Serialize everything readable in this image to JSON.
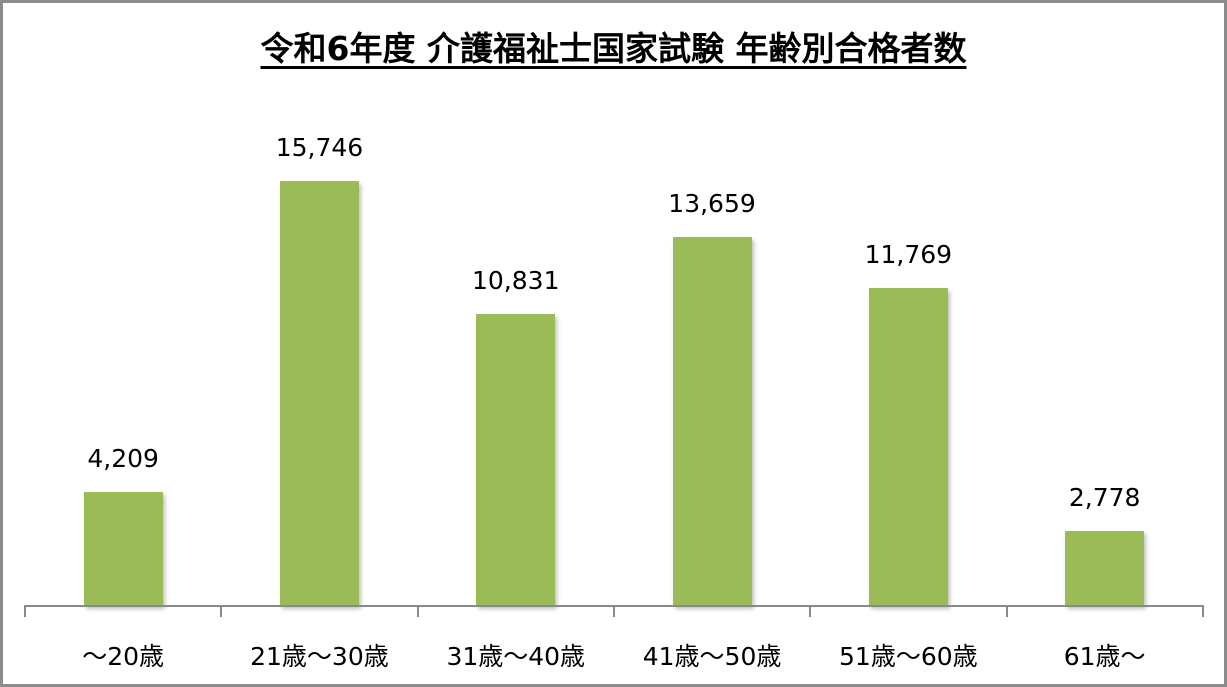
{
  "chart_data": {
    "type": "bar",
    "title": "令和6年度 介護福祉士国家試験 年齢別合格者数",
    "xlabel": "",
    "ylabel": "",
    "categories": [
      "～20歳",
      "21歳～30歳",
      "31歳～40歳",
      "41歳～50歳",
      "51歳～60歳",
      "61歳～"
    ],
    "values": [
      4209,
      15746,
      10831,
      13659,
      11769,
      2778
    ],
    "value_labels": [
      "4,209",
      "15,746",
      "10,831",
      "13,659",
      "11,769",
      "2,778"
    ],
    "ylim": [
      0,
      16000
    ],
    "grid": false,
    "legend": null,
    "bar_color": "#9bbb59"
  }
}
